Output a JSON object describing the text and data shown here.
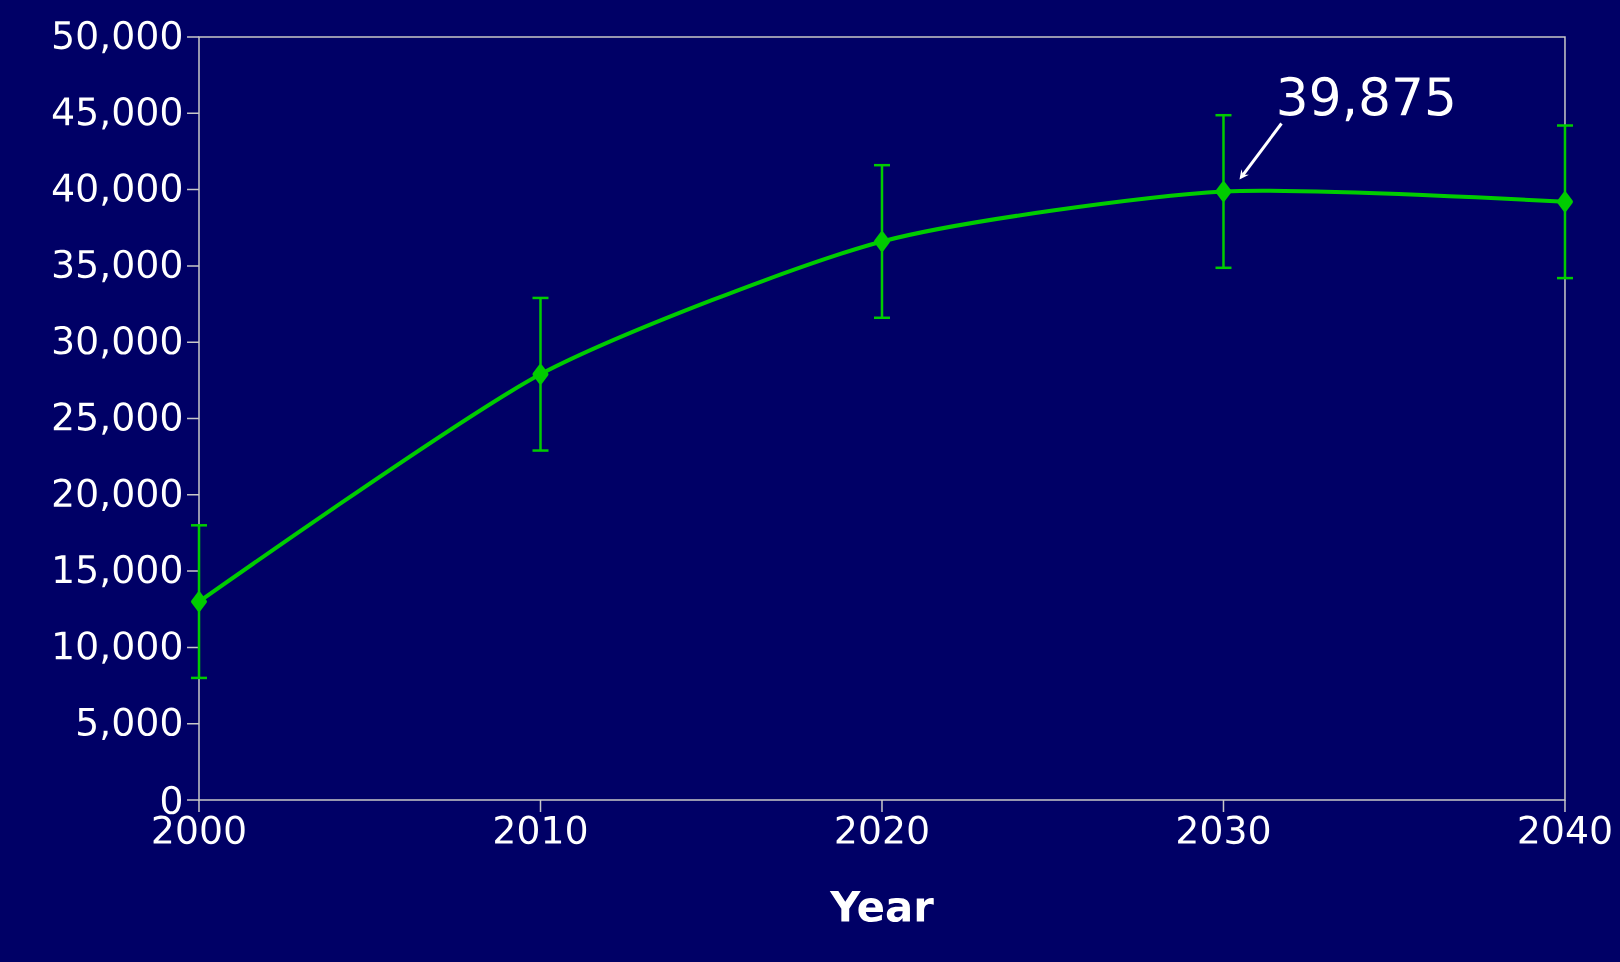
{
  "chart_data": {
    "type": "line",
    "xlabel": "Year",
    "x": [
      2000,
      2010,
      2020,
      2030,
      2040
    ],
    "series": [
      {
        "color": "#00cc00",
        "values": [
          13000,
          27900,
          36600,
          39875,
          39200
        ],
        "errors": [
          5000,
          5000,
          5000,
          5000,
          5000
        ]
      }
    ],
    "xlim": [
      2000,
      2040
    ],
    "xticks": [
      2000,
      2010,
      2020,
      2030,
      2040
    ],
    "ylim": [
      0,
      50000
    ],
    "yticks": [
      0,
      {
        "value": 5000,
        "label": "5,000"
      },
      {
        "value": 10000,
        "label": "10,000"
      },
      {
        "value": 15000,
        "label": "15,000"
      },
      {
        "value": 20000,
        "label": "20,000"
      },
      {
        "value": 25000,
        "label": "25,000"
      },
      {
        "value": 30000,
        "label": "30,000"
      },
      {
        "value": 35000,
        "label": "35,000"
      },
      {
        "value": 40000,
        "label": "40,000"
      },
      {
        "value": 45000,
        "label": "45,000"
      },
      {
        "value": 50000,
        "label": "50,000"
      }
    ],
    "annotations": [
      {
        "text": "39,875",
        "x": 2030,
        "y": 39875
      }
    ],
    "marker": "diamond",
    "line_style": "solid"
  }
}
